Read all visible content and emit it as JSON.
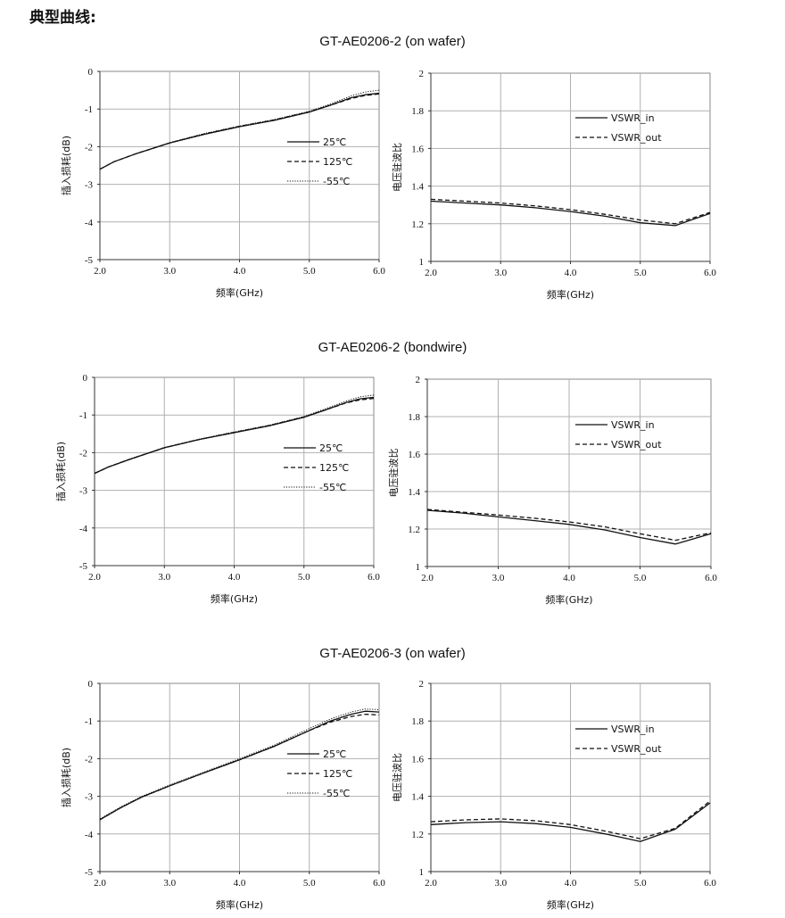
{
  "heading": "典型曲线:",
  "sections": [
    {
      "title": "GT-AE0206-2  (on wafer)"
    },
    {
      "title": "GT-AE0206-2  (bondwire)"
    },
    {
      "title": "GT-AE0206-3  (on wafer)"
    }
  ],
  "chart_data": [
    {
      "type": "line",
      "xlabel": "频率(GHz)",
      "ylabel": "插入损耗(dB)",
      "xlim": [
        2.0,
        6.0
      ],
      "ylim": [
        -5,
        0
      ],
      "x_ticks": [
        "2.0",
        "3.0",
        "4.0",
        "5.0",
        "6.0"
      ],
      "y_ticks": [
        "-5",
        "-4",
        "-3",
        "-2",
        "-1",
        "0"
      ],
      "grid": true,
      "legend_position": "center-right",
      "series": [
        {
          "name": "25℃",
          "style": "solid",
          "x": [
            2.0,
            2.2,
            2.5,
            3.0,
            3.5,
            4.0,
            4.5,
            5.0,
            5.3,
            5.6,
            5.8,
            6.0
          ],
          "y": [
            -2.6,
            -2.4,
            -2.2,
            -1.9,
            -1.67,
            -1.47,
            -1.3,
            -1.08,
            -0.9,
            -0.7,
            -0.62,
            -0.58
          ]
        },
        {
          "name": "125℃",
          "style": "dashed",
          "x": [
            2.0,
            2.2,
            2.5,
            3.0,
            3.5,
            4.0,
            4.5,
            5.0,
            5.3,
            5.6,
            5.8,
            6.0
          ],
          "y": [
            -2.6,
            -2.4,
            -2.2,
            -1.9,
            -1.66,
            -1.46,
            -1.29,
            -1.07,
            -0.9,
            -0.72,
            -0.64,
            -0.6
          ]
        },
        {
          "name": "-55℃",
          "style": "dotted",
          "x": [
            2.0,
            2.2,
            2.5,
            3.0,
            3.5,
            4.0,
            4.5,
            5.0,
            5.3,
            5.6,
            5.8,
            6.0
          ],
          "y": [
            -2.6,
            -2.4,
            -2.2,
            -1.89,
            -1.65,
            -1.45,
            -1.28,
            -1.06,
            -0.87,
            -0.65,
            -0.55,
            -0.5
          ]
        }
      ]
    },
    {
      "type": "line",
      "xlabel": "频率(GHz)",
      "ylabel": "电压驻波比",
      "xlim": [
        2.0,
        6.0
      ],
      "ylim": [
        1,
        2
      ],
      "x_ticks": [
        "2.0",
        "3.0",
        "4.0",
        "5.0",
        "6.0"
      ],
      "y_ticks": [
        "1",
        "1.2",
        "1.4",
        "1.6",
        "1.8",
        "2"
      ],
      "grid": true,
      "legend_position": "top-right",
      "series": [
        {
          "name": "VSWR_in",
          "style": "solid",
          "x": [
            2.0,
            2.5,
            3.0,
            3.5,
            4.0,
            4.5,
            5.0,
            5.5,
            6.0
          ],
          "y": [
            1.32,
            1.31,
            1.3,
            1.285,
            1.265,
            1.24,
            1.205,
            1.19,
            1.255
          ]
        },
        {
          "name": "VSWR_out",
          "style": "dashed",
          "x": [
            2.0,
            2.5,
            3.0,
            3.5,
            4.0,
            4.5,
            5.0,
            5.5,
            6.0
          ],
          "y": [
            1.33,
            1.32,
            1.31,
            1.295,
            1.275,
            1.25,
            1.22,
            1.2,
            1.26
          ]
        }
      ]
    },
    {
      "type": "line",
      "xlabel": "频率(GHz)",
      "ylabel": "插入损耗(dB)",
      "xlim": [
        2.0,
        6.0
      ],
      "ylim": [
        -5,
        0
      ],
      "x_ticks": [
        "2.0",
        "3.0",
        "4.0",
        "5.0",
        "6.0"
      ],
      "y_ticks": [
        "-5",
        "-4",
        "-3",
        "-2",
        "-1",
        "0"
      ],
      "grid": true,
      "legend_position": "center-right",
      "series": [
        {
          "name": "25℃",
          "style": "solid",
          "x": [
            2.0,
            2.2,
            2.5,
            3.0,
            3.5,
            4.0,
            4.5,
            5.0,
            5.3,
            5.6,
            5.8,
            6.0
          ],
          "y": [
            -2.55,
            -2.38,
            -2.18,
            -1.87,
            -1.65,
            -1.47,
            -1.29,
            -1.06,
            -0.87,
            -0.67,
            -0.57,
            -0.53
          ]
        },
        {
          "name": "125℃",
          "style": "dashed",
          "x": [
            2.0,
            2.2,
            2.5,
            3.0,
            3.5,
            4.0,
            4.5,
            5.0,
            5.3,
            5.6,
            5.8,
            6.0
          ],
          "y": [
            -2.55,
            -2.38,
            -2.18,
            -1.87,
            -1.65,
            -1.46,
            -1.28,
            -1.05,
            -0.87,
            -0.68,
            -0.6,
            -0.56
          ]
        },
        {
          "name": "-55℃",
          "style": "dotted",
          "x": [
            2.0,
            2.2,
            2.5,
            3.0,
            3.5,
            4.0,
            4.5,
            5.0,
            5.3,
            5.6,
            5.8,
            6.0
          ],
          "y": [
            -2.55,
            -2.38,
            -2.17,
            -1.86,
            -1.64,
            -1.45,
            -1.27,
            -1.04,
            -0.84,
            -0.63,
            -0.52,
            -0.47
          ]
        }
      ]
    },
    {
      "type": "line",
      "xlabel": "频率(GHz)",
      "ylabel": "电压驻波比",
      "xlim": [
        2.0,
        6.0
      ],
      "ylim": [
        1,
        2
      ],
      "x_ticks": [
        "2.0",
        "3.0",
        "4.0",
        "5.0",
        "6.0"
      ],
      "y_ticks": [
        "1",
        "1.2",
        "1.4",
        "1.6",
        "1.8",
        "2"
      ],
      "grid": true,
      "legend_position": "top-right",
      "series": [
        {
          "name": "VSWR_in",
          "style": "solid",
          "x": [
            2.0,
            2.5,
            3.0,
            3.5,
            4.0,
            4.5,
            5.0,
            5.5,
            6.0
          ],
          "y": [
            1.3,
            1.285,
            1.265,
            1.245,
            1.225,
            1.195,
            1.155,
            1.12,
            1.175
          ]
        },
        {
          "name": "VSWR_out",
          "style": "dashed",
          "x": [
            2.0,
            2.5,
            3.0,
            3.5,
            4.0,
            4.5,
            5.0,
            5.5,
            6.0
          ],
          "y": [
            1.305,
            1.29,
            1.275,
            1.258,
            1.238,
            1.212,
            1.175,
            1.14,
            1.18
          ]
        }
      ]
    },
    {
      "type": "line",
      "xlabel": "频率(GHz)",
      "ylabel": "插入损耗(dB)",
      "xlim": [
        2.0,
        6.0
      ],
      "ylim": [
        -5,
        0
      ],
      "x_ticks": [
        "2.0",
        "3.0",
        "4.0",
        "5.0",
        "6.0"
      ],
      "y_ticks": [
        "-5",
        "-4",
        "-3",
        "-2",
        "-1",
        "0"
      ],
      "grid": true,
      "legend_position": "center-right",
      "series": [
        {
          "name": "25℃",
          "style": "solid",
          "x": [
            2.0,
            2.3,
            2.6,
            3.0,
            3.5,
            4.0,
            4.5,
            5.0,
            5.3,
            5.6,
            5.8,
            6.0
          ],
          "y": [
            -3.62,
            -3.3,
            -3.02,
            -2.72,
            -2.37,
            -2.03,
            -1.67,
            -1.25,
            -1.0,
            -0.82,
            -0.74,
            -0.76
          ]
        },
        {
          "name": "125℃",
          "style": "dashed",
          "x": [
            2.0,
            2.3,
            2.6,
            3.0,
            3.5,
            4.0,
            4.5,
            5.0,
            5.3,
            5.6,
            5.8,
            6.0
          ],
          "y": [
            -3.62,
            -3.3,
            -3.02,
            -2.72,
            -2.37,
            -2.03,
            -1.67,
            -1.25,
            -1.03,
            -0.88,
            -0.82,
            -0.84
          ]
        },
        {
          "name": "-55℃",
          "style": "dotted",
          "x": [
            2.0,
            2.3,
            2.6,
            3.0,
            3.5,
            4.0,
            4.5,
            5.0,
            5.3,
            5.6,
            5.8,
            6.0
          ],
          "y": [
            -3.6,
            -3.28,
            -3.0,
            -2.7,
            -2.35,
            -2.0,
            -1.64,
            -1.2,
            -0.95,
            -0.76,
            -0.68,
            -0.7
          ]
        }
      ]
    },
    {
      "type": "line",
      "xlabel": "频率(GHz)",
      "ylabel": "电压驻波比",
      "xlim": [
        2.0,
        6.0
      ],
      "ylim": [
        1,
        2
      ],
      "x_ticks": [
        "2.0",
        "3.0",
        "4.0",
        "5.0",
        "6.0"
      ],
      "y_ticks": [
        "1",
        "1.2",
        "1.4",
        "1.6",
        "1.8",
        "2"
      ],
      "grid": true,
      "legend_position": "top-right",
      "series": [
        {
          "name": "VSWR_in",
          "style": "solid",
          "x": [
            2.0,
            2.5,
            3.0,
            3.5,
            4.0,
            4.5,
            5.0,
            5.5,
            6.0
          ],
          "y": [
            1.25,
            1.26,
            1.265,
            1.255,
            1.235,
            1.2,
            1.16,
            1.225,
            1.365
          ]
        },
        {
          "name": "VSWR_out",
          "style": "dashed",
          "x": [
            2.0,
            2.5,
            3.0,
            3.5,
            4.0,
            4.5,
            5.0,
            5.5,
            6.0
          ],
          "y": [
            1.265,
            1.275,
            1.28,
            1.27,
            1.25,
            1.215,
            1.175,
            1.23,
            1.375
          ]
        }
      ]
    }
  ]
}
